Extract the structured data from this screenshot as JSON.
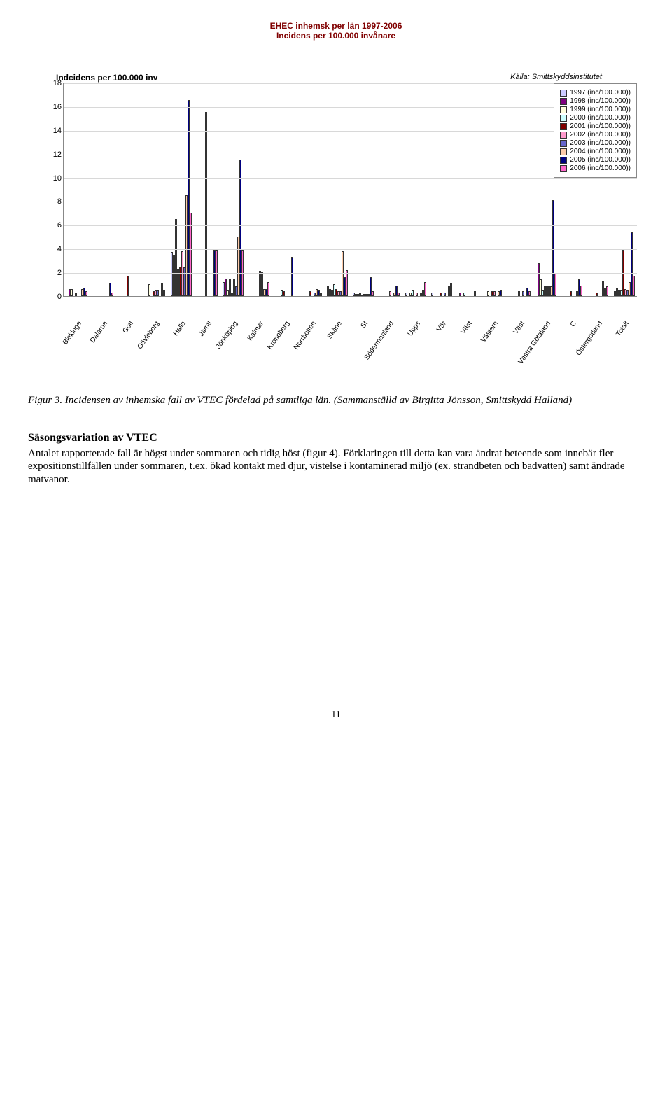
{
  "chart": {
    "title_line1": "EHEC inhemsk per län 1997-2006",
    "title_line2": "Incidens per 100.000 invånare",
    "y_axis_title": "Indcidens per 100.000 inv",
    "source": "Källa: Smittskyddsinstitutet",
    "type": "grouped_bar",
    "ylim": [
      0,
      18
    ],
    "ytick_step": 2,
    "yticks": [
      0,
      2,
      4,
      6,
      8,
      10,
      12,
      14,
      16,
      18
    ],
    "background_color": "#ffffff",
    "grid_color": "#d8d8d8",
    "axis_color": "#888888",
    "series": [
      {
        "label": "1997 (inc/100.000))",
        "color": "#ccccff"
      },
      {
        "label": "1998 (inc/100.000))",
        "color": "#800080"
      },
      {
        "label": "1999 (inc/100.000))",
        "color": "#ffffdd"
      },
      {
        "label": "2000 (inc/100.000))",
        "color": "#ccffff"
      },
      {
        "label": "2001 (inc/100.000))",
        "color": "#800000"
      },
      {
        "label": "2002 (inc/100.000))",
        "color": "#ff99cc"
      },
      {
        "label": "2003 (inc/100.000))",
        "color": "#6666cc"
      },
      {
        "label": "2004 (inc/100.000))",
        "color": "#ffccaa"
      },
      {
        "label": "2005 (inc/100.000))",
        "color": "#000080"
      },
      {
        "label": "2006 (inc/100.000))",
        "color": "#ff66cc"
      }
    ],
    "categories": [
      {
        "label": "Blekinge",
        "values": [
          0,
          0.6,
          0.6,
          0,
          0.3,
          0,
          0,
          0.6,
          0.7,
          0.4
        ]
      },
      {
        "label": "Dalarna",
        "values": [
          0,
          0,
          0,
          0,
          0,
          0,
          0,
          0,
          1.1,
          0.3
        ]
      },
      {
        "label": "Gotl",
        "values": [
          0,
          0,
          0,
          0,
          1.7,
          0,
          0,
          0,
          0,
          0
        ]
      },
      {
        "label": "Gävleborg",
        "values": [
          0,
          0,
          1.0,
          0,
          0.4,
          0.5,
          0.5,
          0,
          1.1,
          0.5
        ]
      },
      {
        "label": "Halla",
        "values": [
          3.7,
          3.5,
          6.5,
          2.3,
          2.5,
          3.8,
          2.4,
          8.5,
          16.5,
          7.0
        ]
      },
      {
        "label": "Jämtl",
        "values": [
          0,
          0,
          0,
          0,
          15.5,
          0,
          0,
          0,
          3.9,
          3.9
        ]
      },
      {
        "label": "Jönköping",
        "values": [
          1.2,
          1.5,
          0.5,
          1.4,
          0.3,
          1.5,
          0.8,
          5.0,
          11.5,
          3.9
        ]
      },
      {
        "label": "Kalmar",
        "values": [
          0,
          0,
          0,
          0,
          0,
          2.1,
          2.0,
          0.6,
          0.6,
          1.2
        ]
      },
      {
        "label": "Kronoberg",
        "values": [
          0,
          0,
          0,
          0.5,
          0.4,
          0,
          0,
          0,
          3.3,
          0
        ]
      },
      {
        "label": "Norrbotten",
        "values": [
          0,
          0,
          0,
          0,
          0.4,
          0,
          0.3,
          0.6,
          0.5,
          0.3
        ]
      },
      {
        "label": "Skåne",
        "values": [
          0.8,
          0.6,
          0.5,
          1.0,
          0.6,
          0.4,
          0.4,
          3.8,
          1.6,
          2.2
        ]
      },
      {
        "label": "St",
        "values": [
          0.3,
          0.2,
          0.2,
          0.3,
          0.1,
          0.2,
          0.2,
          0.2,
          1.6,
          0.4
        ]
      },
      {
        "label": "Södermanland",
        "values": [
          0,
          0,
          0,
          0,
          0,
          0.4,
          0,
          0.3,
          0.9,
          0.3
        ]
      },
      {
        "label": "Upps",
        "values": [
          0.3,
          0,
          0.3,
          0.5,
          0,
          0.3,
          0,
          0.3,
          0.5,
          1.2
        ]
      },
      {
        "label": "Vär",
        "values": [
          0.3,
          0,
          0,
          0,
          0.3,
          0,
          0.3,
          0,
          0.9,
          1.1
        ]
      },
      {
        "label": "Väst",
        "values": [
          0,
          0.3,
          0,
          0.3,
          0,
          0,
          0,
          0,
          0.4,
          0
        ]
      },
      {
        "label": "Västern",
        "values": [
          0,
          0,
          0.4,
          0,
          0.4,
          0.4,
          0,
          0.4,
          0.5,
          0
        ]
      },
      {
        "label": "Väst",
        "values": [
          0,
          0,
          0,
          0,
          0.4,
          0,
          0.4,
          0,
          0.7,
          0.4
        ]
      },
      {
        "label": "Västra Götaland",
        "values": [
          0,
          2.8,
          1.4,
          0.5,
          0.8,
          0.8,
          0.8,
          0.8,
          8.1,
          1.9
        ]
      },
      {
        "label": "C",
        "values": [
          0,
          0,
          0,
          0,
          0.4,
          0,
          0,
          0.4,
          1.4,
          0.9
        ]
      },
      {
        "label": "Östergötland",
        "values": [
          0,
          0,
          0,
          0,
          0.3,
          0,
          0,
          1.3,
          0.7,
          0.8
        ]
      },
      {
        "label": "Totalt",
        "values": [
          0.4,
          0.7,
          0.5,
          0.5,
          3.9,
          0.6,
          0.5,
          1.2,
          5.4,
          1.7
        ]
      }
    ]
  },
  "caption": "Figur 3. Incidensen av inhemska fall av VTEC fördelad på samtliga län. (Sammanställd av Birgitta Jönsson, Smittskydd Halland)",
  "section_heading": "Säsongsvariation av VTEC",
  "body_text": "Antalet rapporterade fall är högst under sommaren och tidig höst (figur 4). Förklaringen till detta kan vara ändrat beteende som innebär fler expositionstillfällen under sommaren, t.ex. ökad kontakt med djur, vistelse i kontaminerad miljö (ex. strandbeten och badvatten) samt ändrade matvanor.",
  "page_number": "11"
}
